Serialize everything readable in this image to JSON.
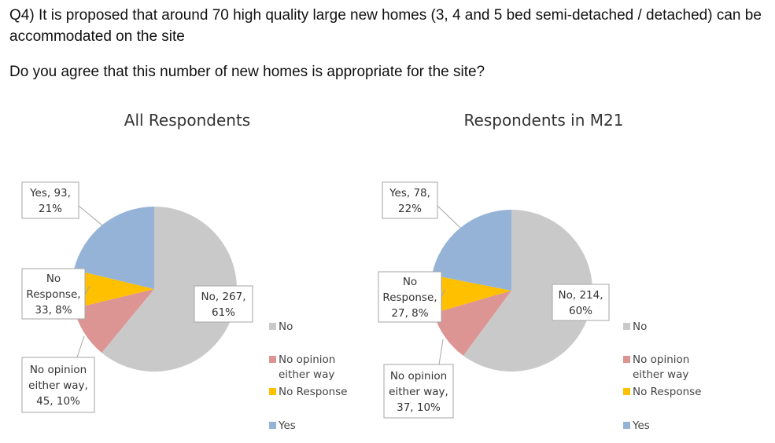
{
  "question": {
    "text": "Q4) It is proposed that around 70 high quality large new homes (3, 4 and 5 bed semi-detached / detached) can be accommodated on the site",
    "prompt": "Do you agree that this number of new homes is appropriate for the site?"
  },
  "colors": {
    "No": "#c9c9c9",
    "No opinion either way": "#dc9593",
    "No Response": "#ffc000",
    "Yes": "#95b3d7"
  },
  "chart_data": [
    {
      "type": "pie",
      "title": "All Respondents",
      "categories": [
        "No",
        "No opinion either way",
        "No Response",
        "Yes"
      ],
      "values": [
        267,
        45,
        33,
        93
      ],
      "percent": [
        61,
        10,
        8,
        21
      ],
      "labels": [
        [
          "No, 267,",
          "61%"
        ],
        [
          "No opinion",
          "either way,",
          "45, 10%"
        ],
        [
          "No",
          "Response,",
          "33, 8%"
        ],
        [
          "Yes, 93,",
          "21%"
        ]
      ],
      "legend": [
        [
          "No"
        ],
        [
          "No opinion",
          "either way"
        ],
        [
          "No Response"
        ],
        [
          "Yes"
        ]
      ],
      "legend_placement": "right"
    },
    {
      "type": "pie",
      "title": "Respondents in M21",
      "categories": [
        "No",
        "No opinion either way",
        "No Response",
        "Yes"
      ],
      "values": [
        214,
        37,
        27,
        78
      ],
      "percent": [
        60,
        10,
        8,
        22
      ],
      "labels": [
        [
          "No, 214,",
          "60%"
        ],
        [
          "No opinion",
          "either way,",
          "37, 10%"
        ],
        [
          "No",
          "Response,",
          "27, 8%"
        ],
        [
          "Yes, 78,",
          "22%"
        ]
      ],
      "legend": [
        [
          "No"
        ],
        [
          "No opinion",
          "either way"
        ],
        [
          "No Response"
        ],
        [
          "Yes"
        ]
      ],
      "legend_placement": "right"
    }
  ]
}
